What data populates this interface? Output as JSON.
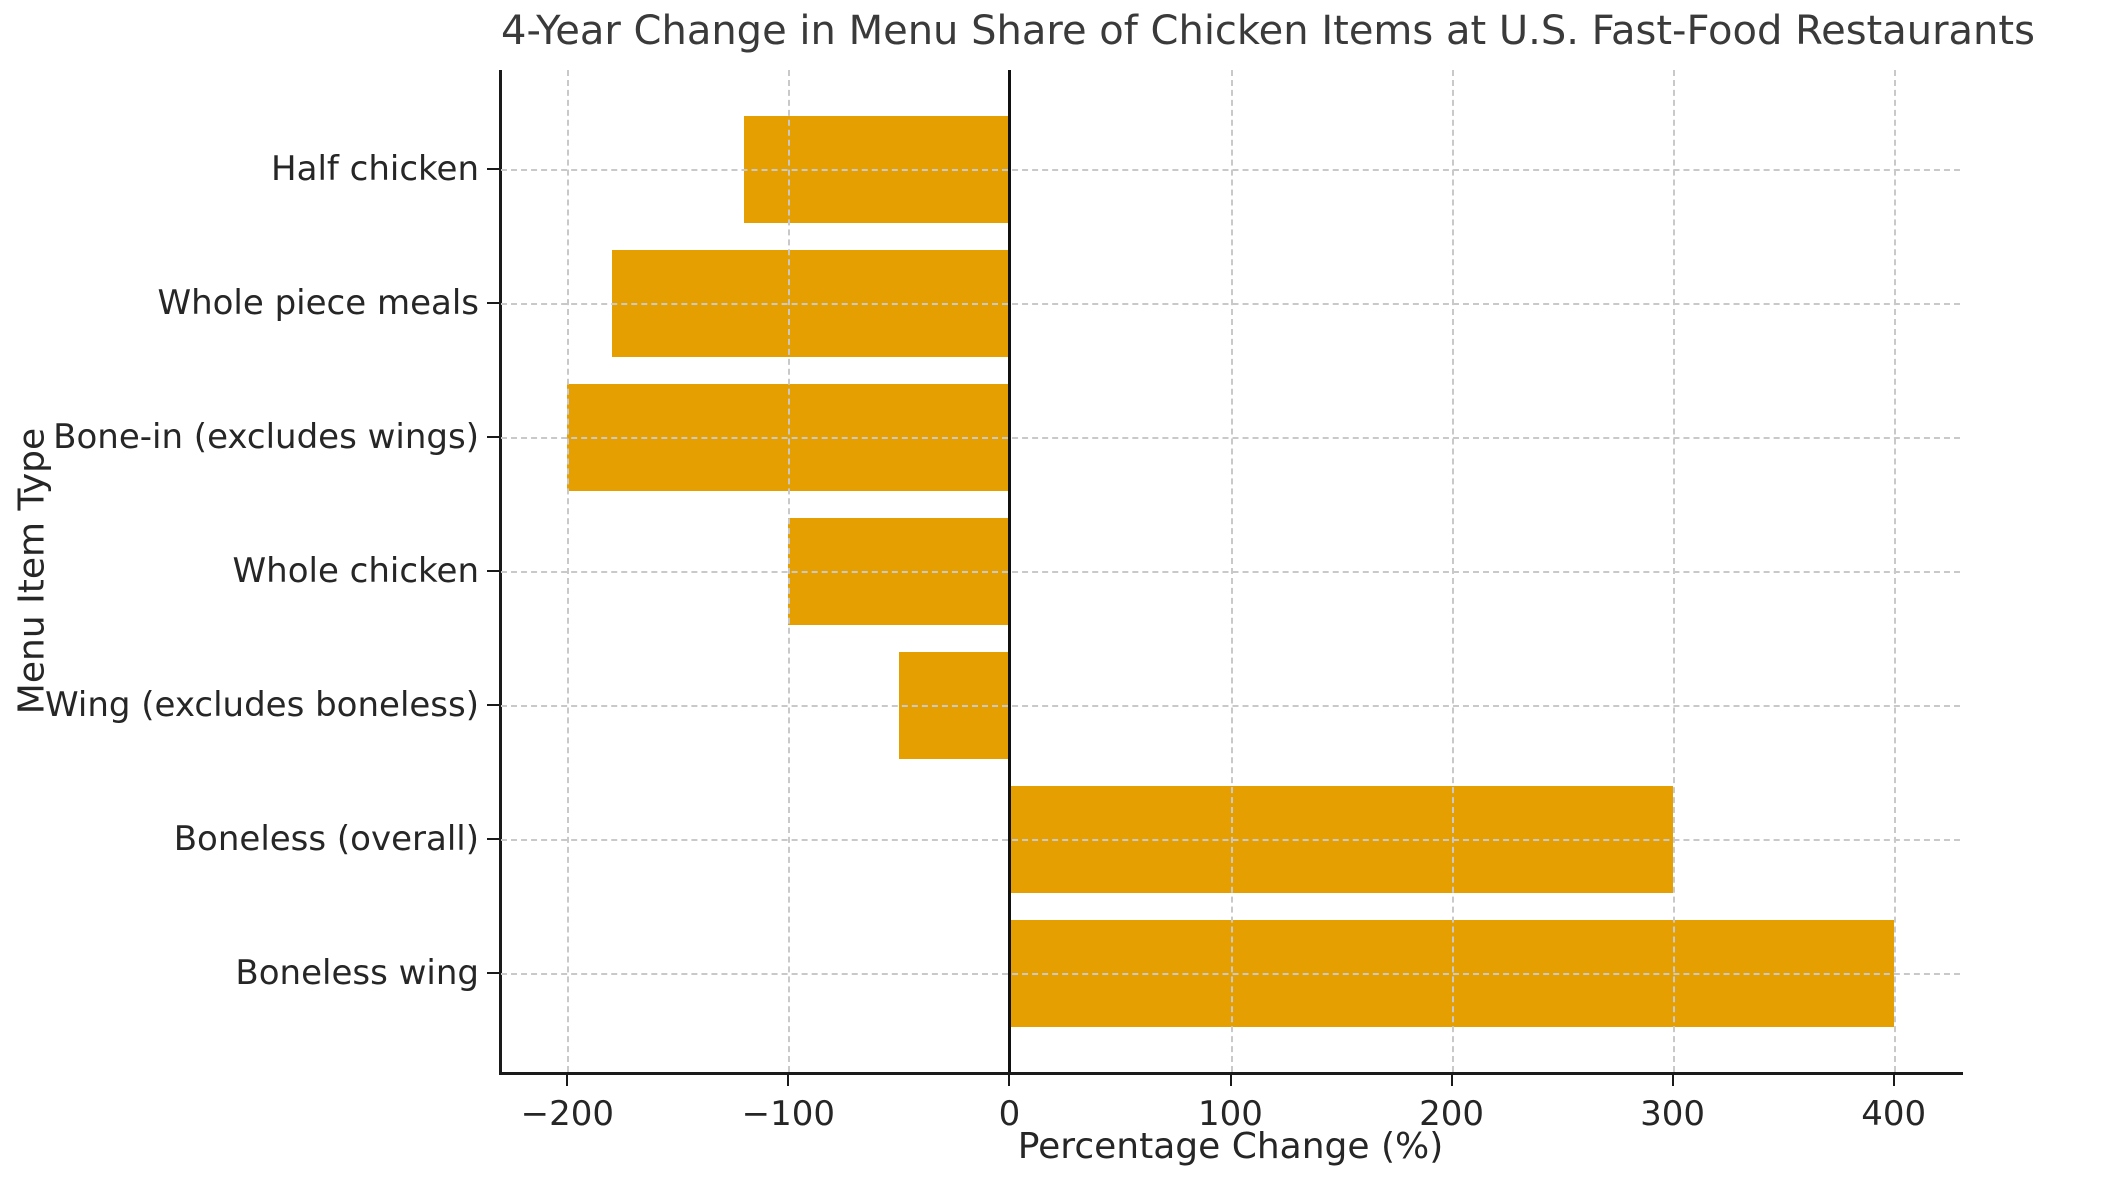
{
  "chart_data": {
    "type": "bar",
    "orientation": "horizontal",
    "title": "4-Year Change in Menu Share of Chicken Items at U.S. Fast-Food Restaurants",
    "xlabel": "Percentage Change (%)",
    "ylabel": "Menu Item Type",
    "categories": [
      "Half chicken",
      "Whole piece meals",
      "Bone-in (excludes wings)",
      "Whole chicken",
      "Wing (excludes boneless)",
      "Boneless (overall)",
      "Boneless wing"
    ],
    "values": [
      -120,
      -180,
      -200,
      -100,
      -50,
      300,
      400
    ],
    "xticks": [
      -200,
      -100,
      0,
      100,
      200,
      300,
      400
    ],
    "xlim": [
      -230,
      430
    ],
    "bar_color": "#E69F00",
    "grid": true,
    "grid_style": "dashed",
    "grid_color": "#c9c9c9",
    "zero_line": true,
    "legend": "none"
  }
}
